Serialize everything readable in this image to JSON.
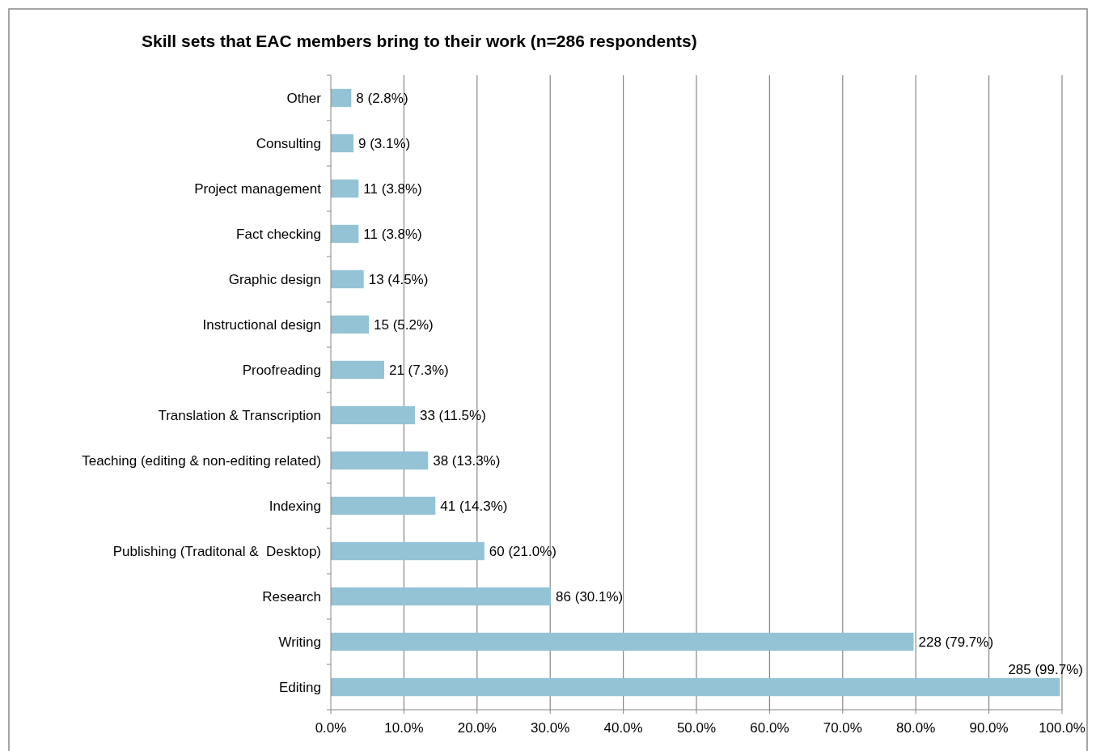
{
  "chart_data": {
    "type": "bar",
    "orientation": "horizontal",
    "title": "Skill sets that EAC members bring to their work (n=286 respondents)",
    "categories": [
      "Other",
      "Consulting",
      "Project management",
      "Fact checking",
      "Graphic design",
      "Instructional design",
      "Proofreading",
      "Translation & Transcription",
      "Teaching (editing & non-editing related)",
      "Indexing",
      "Publishing (Traditonal &  Desktop)",
      "Research",
      "Writing",
      "Editing"
    ],
    "values": [
      2.8,
      3.1,
      3.8,
      3.8,
      4.5,
      5.2,
      7.3,
      11.5,
      13.3,
      14.3,
      21.0,
      30.1,
      79.7,
      99.7
    ],
    "value_labels": [
      "8 (2.8%)",
      "9 (3.1%)",
      "11 (3.8%)",
      "11 (3.8%)",
      "13 (4.5%)",
      "15 (5.2%)",
      "21 (7.3%)",
      "33 (11.5%)",
      "38 (13.3%)",
      "41 (14.3%)",
      "60 (21.0%)",
      "86 (30.1%)",
      "228 (79.7%)",
      "285 (99.7%)"
    ],
    "color": "#93c3d5",
    "xlim": [
      0,
      100
    ],
    "xticks": [
      {
        "value": 0,
        "label": "0.0%"
      },
      {
        "value": 10,
        "label": "10.0%"
      },
      {
        "value": 20,
        "label": "20.0%"
      },
      {
        "value": 30,
        "label": "30.0%"
      },
      {
        "value": 40,
        "label": "40.0%"
      },
      {
        "value": 50,
        "label": "50.0%"
      },
      {
        "value": 60,
        "label": "60.0%"
      },
      {
        "value": 70,
        "label": "70.0%"
      },
      {
        "value": 80,
        "label": "80.0%"
      },
      {
        "value": 90,
        "label": "90.0%"
      },
      {
        "value": 100,
        "label": "100.0%"
      }
    ],
    "grid": "x"
  }
}
